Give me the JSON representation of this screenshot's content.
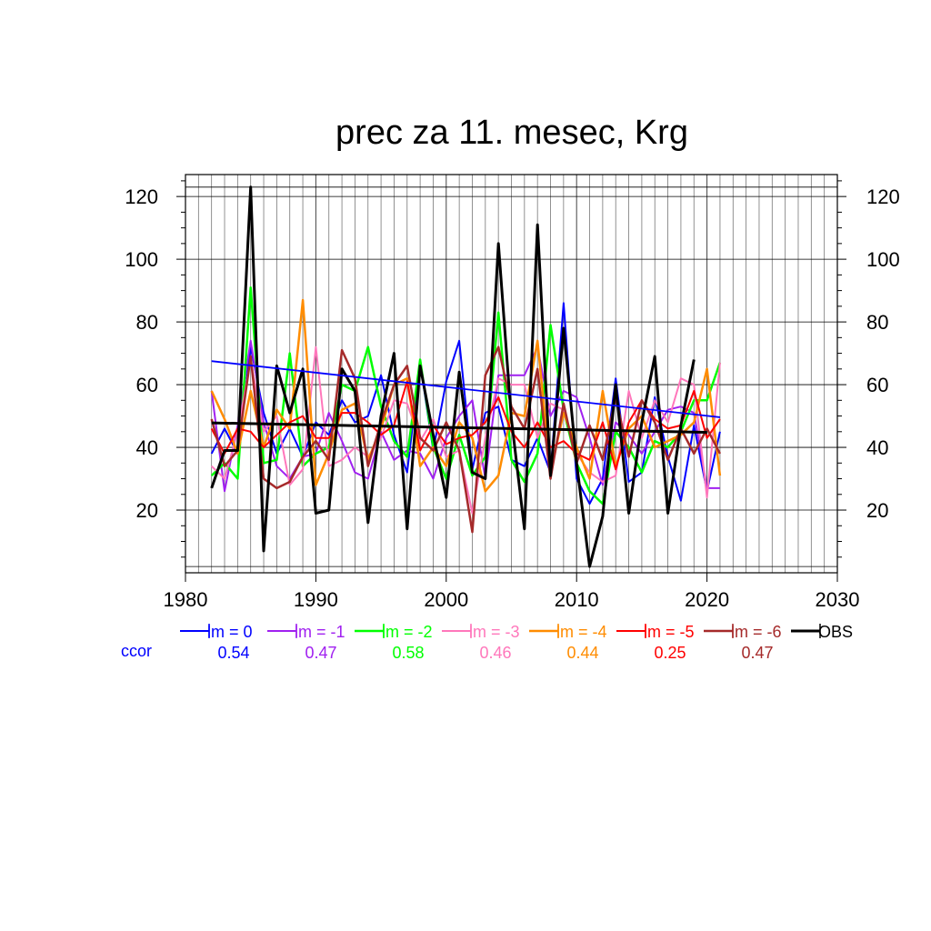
{
  "chart_data": {
    "type": "line",
    "title": "prec za 11. mesec, Krg",
    "xlabel": "",
    "ylabel": "",
    "xlim": [
      1980,
      2030
    ],
    "ylim": [
      0,
      127
    ],
    "xticks": [
      1980,
      1990,
      2000,
      2010,
      2020,
      2030
    ],
    "yticks": [
      20,
      40,
      60,
      80,
      100,
      120
    ],
    "grid": true,
    "x": [
      1982,
      1983,
      1984,
      1985,
      1986,
      1987,
      1988,
      1989,
      1990,
      1991,
      1992,
      1993,
      1994,
      1995,
      1996,
      1997,
      1998,
      1999,
      2000,
      2001,
      2002,
      2003,
      2004,
      2005,
      2006,
      2007,
      2008,
      2009,
      2010,
      2011,
      2012,
      2013,
      2014,
      2015,
      2016,
      2017,
      2018,
      2019,
      2020,
      2021
    ],
    "series": [
      {
        "name": "lm = 0",
        "color": "#0000ff",
        "width": 2,
        "values": [
          38,
          46,
          38,
          72,
          51,
          38,
          46,
          37,
          48,
          44,
          55,
          48,
          50,
          63,
          44,
          32,
          67,
          39,
          61,
          74,
          33,
          51,
          53,
          36,
          34,
          43,
          32,
          86,
          30,
          22,
          30,
          62,
          29,
          32,
          56,
          37,
          23,
          47,
          26,
          45
        ]
      },
      {
        "name": "lm = -1",
        "color": "#a020f0",
        "width": 2,
        "values": [
          58,
          26,
          47,
          74,
          48,
          34,
          30,
          37,
          38,
          51,
          42,
          32,
          30,
          45,
          36,
          39,
          38,
          30,
          43,
          50,
          55,
          30,
          63,
          63,
          63,
          72,
          50,
          58,
          56,
          43,
          28,
          48,
          44,
          38,
          45,
          52,
          53,
          51,
          27,
          27
        ]
      },
      {
        "name": "lm = -2",
        "color": "#00ff00",
        "width": 2.5,
        "values": [
          31,
          35,
          30,
          91,
          35,
          36,
          70,
          34,
          38,
          40,
          60,
          58,
          72,
          53,
          42,
          37,
          68,
          40,
          30,
          44,
          31,
          37,
          83,
          36,
          29,
          38,
          79,
          52,
          35,
          26,
          22,
          45,
          40,
          32,
          42,
          40,
          45,
          55,
          55,
          67
        ]
      },
      {
        "name": "lm = -3",
        "color": "#ff77bb",
        "width": 2,
        "values": [
          34,
          30,
          45,
          68,
          45,
          50,
          28,
          33,
          72,
          34,
          36,
          40,
          37,
          43,
          55,
          54,
          42,
          49,
          37,
          39,
          19,
          43,
          62,
          60,
          60,
          43,
          54,
          52,
          38,
          32,
          29,
          31,
          58,
          43,
          55,
          48,
          62,
          60,
          24,
          67
        ]
      },
      {
        "name": "lm = -4",
        "color": "#ff8c00",
        "width": 2.5,
        "values": [
          58,
          49,
          38,
          58,
          40,
          52,
          46,
          87,
          28,
          38,
          52,
          54,
          36,
          46,
          60,
          62,
          34,
          40,
          34,
          48,
          43,
          26,
          31,
          51,
          50,
          74,
          32,
          51,
          40,
          30,
          58,
          34,
          46,
          50,
          40,
          42,
          44,
          48,
          65,
          31
        ]
      },
      {
        "name": "lm = -5",
        "color": "#ff0000",
        "width": 2,
        "values": [
          46,
          38,
          46,
          45,
          40,
          44,
          48,
          50,
          43,
          43,
          51,
          51,
          48,
          44,
          47,
          61,
          39,
          47,
          41,
          43,
          44,
          48,
          56,
          45,
          40,
          48,
          40,
          42,
          38,
          36,
          48,
          33,
          48,
          55,
          49,
          46,
          47,
          58,
          43,
          49
        ]
      },
      {
        "name": "lm = -6",
        "color": "#a52a2a",
        "width": 2.5,
        "values": [
          49,
          34,
          39,
          69,
          30,
          27,
          29,
          37,
          42,
          36,
          71,
          62,
          34,
          48,
          60,
          66,
          43,
          39,
          48,
          39,
          13,
          63,
          72,
          53,
          46,
          65,
          30,
          54,
          35,
          47,
          36,
          56,
          37,
          55,
          48,
          36,
          46,
          38,
          46,
          38
        ]
      },
      {
        "name": "OBS",
        "color": "#000000",
        "width": 3,
        "values": [
          27,
          39,
          39,
          123,
          7,
          66,
          51,
          65,
          19,
          20,
          65,
          58,
          16,
          50,
          70,
          14,
          66,
          44,
          24,
          64,
          32,
          30,
          105,
          49,
          14,
          111,
          31,
          78,
          35,
          2,
          18,
          60,
          19,
          48,
          69,
          19,
          47,
          68,
          null,
          null
        ]
      }
    ],
    "trend_lines": [
      {
        "series": "lm = 0",
        "color": "#0000ff",
        "x": [
          1982,
          2021
        ],
        "y": [
          67.5,
          49.6
        ]
      },
      {
        "series": "OBS",
        "color": "#000000",
        "x": [
          1982,
          2020
        ],
        "y": [
          47.8,
          44.8
        ]
      }
    ],
    "ccor": {
      "label": "ccor",
      "values": [
        "0.54",
        "0.47",
        "0.58",
        "0.46",
        "0.44",
        "0.25",
        "0.47"
      ]
    }
  }
}
